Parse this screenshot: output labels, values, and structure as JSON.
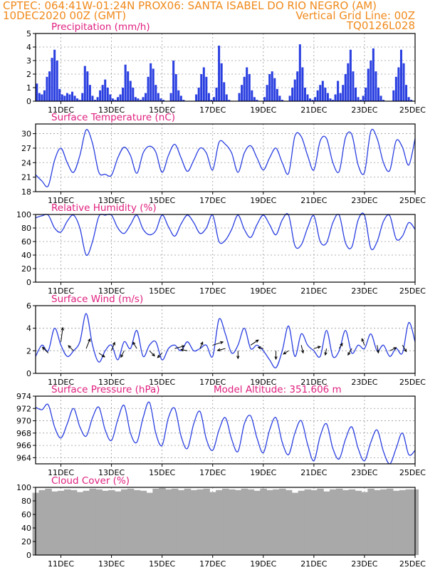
{
  "header": {
    "left_line1": "CPTEC:   064:41W-01:24N   PROX06: SANTA ISABEL DO RIO NEGRO (AM)",
    "left_line2": "10DEC2020 00Z (GMT)",
    "right_line2": "Vertical Grid Line: 00Z",
    "right_line3": "TQ0126L028"
  },
  "x_axis": {
    "start": "10DEC2020 00Z",
    "end": "25DEC2020 00Z",
    "tick_labels": [
      "11DEC",
      "13DEC",
      "15DEC",
      "17DEC",
      "19DEC",
      "21DEC",
      "23DEC",
      "25DEC"
    ],
    "tick_days": [
      1,
      3,
      5,
      7,
      9,
      11,
      13,
      15
    ]
  },
  "colors": {
    "series": "#2a3fe0",
    "cloud": "#a9a9a9",
    "title": "#e0207f",
    "header": "#f08a1c"
  },
  "chart_data": [
    {
      "type": "bar",
      "title": "Precipitation (mm/h)",
      "ylim": [
        0,
        5
      ],
      "yticks": [
        0,
        1,
        2,
        3,
        4,
        5
      ],
      "x_days": [
        0.05,
        0.15,
        0.25,
        0.35,
        0.45,
        0.55,
        0.65,
        0.75,
        0.85,
        0.95,
        1.05,
        1.15,
        1.25,
        1.35,
        1.45,
        1.55,
        1.65,
        1.75,
        1.85,
        1.95,
        2.05,
        2.15,
        2.25,
        2.35,
        2.45,
        2.55,
        2.65,
        2.75,
        2.85,
        2.95,
        3.05,
        3.15,
        3.25,
        3.35,
        3.45,
        3.55,
        3.65,
        3.75,
        3.85,
        3.95,
        4.05,
        4.15,
        4.25,
        4.35,
        4.45,
        4.55,
        4.65,
        4.75,
        4.85,
        4.95,
        5.05,
        5.15,
        5.25,
        5.35,
        5.45,
        5.55,
        5.65,
        5.75,
        5.85,
        5.95,
        6.05,
        6.15,
        6.25,
        6.35,
        6.45,
        6.55,
        6.65,
        6.75,
        6.85,
        6.95,
        7.05,
        7.15,
        7.25,
        7.35,
        7.45,
        7.55,
        7.65,
        7.75,
        7.85,
        7.95,
        8.05,
        8.15,
        8.25,
        8.35,
        8.45,
        8.55,
        8.65,
        8.75,
        8.85,
        8.95,
        9.05,
        9.15,
        9.25,
        9.35,
        9.45,
        9.55,
        9.65,
        9.75,
        9.85,
        9.95,
        10.05,
        10.15,
        10.25,
        10.35,
        10.45,
        10.55,
        10.65,
        10.75,
        10.85,
        10.95,
        11.05,
        11.15,
        11.25,
        11.35,
        11.45,
        11.55,
        11.65,
        11.75,
        11.85,
        11.95,
        12.05,
        12.15,
        12.25,
        12.35,
        12.45,
        12.55,
        12.65,
        12.75,
        12.85,
        12.95,
        13.05,
        13.15,
        13.25,
        13.35,
        13.45,
        13.55,
        13.65,
        13.75,
        13.85,
        13.95,
        14.05,
        14.15,
        14.25,
        14.35,
        14.45,
        14.55,
        14.65,
        14.75,
        14.85,
        14.95
      ],
      "values": [
        1.3,
        0.6,
        0.5,
        0.8,
        1.8,
        2.2,
        3.2,
        3.8,
        3.0,
        0.9,
        0.5,
        0.4,
        0.6,
        0.5,
        0.7,
        0.4,
        0.2,
        0.1,
        0.6,
        2.6,
        2.2,
        1.2,
        0.4,
        0.1,
        0.3,
        0.8,
        1.2,
        1.6,
        1.0,
        0.5,
        0.2,
        0.1,
        0.3,
        0.5,
        1.0,
        2.7,
        2.2,
        1.5,
        1.0,
        0.3,
        0.2,
        0.1,
        0.3,
        0.6,
        1.8,
        2.8,
        2.4,
        1.2,
        0.6,
        0.2,
        0.1,
        0.0,
        0.0,
        0.6,
        3.0,
        2.0,
        0.8,
        0.4,
        0.1,
        0.0,
        0.0,
        0.0,
        0.0,
        0.5,
        1.0,
        2.0,
        2.5,
        1.8,
        0.6,
        0.1,
        0.3,
        1.0,
        4.1,
        2.8,
        1.4,
        0.5,
        0.1,
        0.0,
        0.0,
        0.0,
        0.6,
        1.2,
        1.8,
        2.5,
        2.0,
        0.8,
        0.3,
        0.1,
        0.0,
        0.0,
        0.3,
        1.2,
        2.0,
        2.2,
        1.7,
        0.9,
        0.4,
        0.1,
        0.0,
        0.0,
        0.4,
        1.0,
        1.6,
        2.2,
        4.2,
        2.5,
        1.0,
        0.5,
        0.2,
        0.1,
        0.3,
        0.8,
        1.2,
        1.5,
        1.0,
        0.6,
        0.2,
        0.1,
        0.5,
        1.5,
        0.6,
        1.2,
        2.0,
        2.8,
        3.8,
        2.2,
        1.0,
        0.3,
        0.1,
        0.4,
        1.0,
        2.4,
        3.0,
        3.9,
        2.2,
        1.0,
        0.4,
        0.1,
        0.0,
        0.0,
        0.0,
        0.8,
        1.8,
        2.5,
        3.8,
        2.8,
        1.2,
        0.3,
        0.1,
        0.0
      ]
    },
    {
      "type": "line",
      "title": "Surface Temperature (nC)",
      "ylim": [
        18,
        32
      ],
      "yticks": [
        18,
        21,
        24,
        27,
        30
      ],
      "x_days": [
        0.0,
        0.25,
        0.5,
        0.75,
        1.0,
        1.25,
        1.5,
        1.75,
        2.0,
        2.25,
        2.5,
        2.75,
        3.0,
        3.25,
        3.5,
        3.75,
        4.0,
        4.25,
        4.5,
        4.75,
        5.0,
        5.25,
        5.5,
        5.75,
        6.0,
        6.25,
        6.5,
        6.75,
        7.0,
        7.25,
        7.5,
        7.75,
        8.0,
        8.25,
        8.5,
        8.75,
        9.0,
        9.25,
        9.5,
        9.75,
        10.0,
        10.25,
        10.5,
        10.75,
        11.0,
        11.25,
        11.5,
        11.75,
        12.0,
        12.25,
        12.5,
        12.75,
        13.0,
        13.25,
        13.5,
        13.75,
        14.0,
        14.25,
        14.5,
        14.75,
        15.0
      ],
      "values": [
        21.5,
        20.2,
        19.2,
        24.5,
        27.0,
        24.0,
        22.0,
        25.5,
        30.8,
        28.0,
        22.0,
        21.6,
        21.4,
        25.0,
        27.2,
        25.5,
        21.8,
        26.0,
        27.4,
        26.2,
        22.0,
        25.5,
        27.8,
        25.0,
        22.2,
        24.5,
        27.0,
        26.0,
        22.5,
        28.2,
        27.8,
        26.0,
        22.0,
        26.0,
        27.5,
        25.0,
        22.5,
        25.0,
        27.0,
        24.0,
        21.8,
        29.5,
        29.4,
        25.5,
        22.5,
        28.5,
        29.0,
        24.0,
        22.2,
        29.2,
        29.8,
        23.5,
        22.0,
        30.5,
        29.0,
        24.0,
        22.4,
        28.5,
        27.2,
        23.5,
        29.0
      ]
    },
    {
      "type": "line",
      "title": "Relative Humidity (%)",
      "ylim": [
        0,
        100
      ],
      "yticks": [
        0,
        20,
        40,
        60,
        80,
        100
      ],
      "x_days": [
        0.0,
        0.25,
        0.5,
        0.75,
        1.0,
        1.25,
        1.5,
        1.75,
        2.0,
        2.25,
        2.5,
        2.75,
        3.0,
        3.25,
        3.5,
        3.75,
        4.0,
        4.25,
        4.5,
        4.75,
        5.0,
        5.25,
        5.5,
        5.75,
        6.0,
        6.25,
        6.5,
        6.75,
        7.0,
        7.25,
        7.5,
        7.75,
        8.0,
        8.25,
        8.5,
        8.75,
        9.0,
        9.25,
        9.5,
        9.75,
        10.0,
        10.25,
        10.5,
        10.75,
        11.0,
        11.25,
        11.5,
        11.75,
        12.0,
        12.25,
        12.5,
        12.75,
        13.0,
        13.25,
        13.5,
        13.75,
        14.0,
        14.25,
        14.5,
        14.75,
        15.0
      ],
      "values": [
        95,
        98,
        99,
        80,
        74,
        90,
        99,
        80,
        40,
        60,
        97,
        99,
        99,
        80,
        72,
        85,
        99,
        78,
        70,
        76,
        99,
        82,
        68,
        86,
        99,
        88,
        72,
        80,
        99,
        60,
        62,
        78,
        99,
        78,
        66,
        85,
        99,
        85,
        70,
        92,
        99,
        54,
        55,
        80,
        98,
        60,
        58,
        88,
        99,
        58,
        52,
        92,
        99,
        50,
        60,
        90,
        98,
        64,
        68,
        88,
        78
      ]
    },
    {
      "type": "line",
      "title": "Surface Wind (m/s)",
      "ylim": [
        0,
        6
      ],
      "yticks": [
        0,
        2,
        4,
        6
      ],
      "x_days": [
        0.0,
        0.25,
        0.5,
        0.75,
        1.0,
        1.25,
        1.5,
        1.75,
        2.0,
        2.25,
        2.5,
        2.75,
        3.0,
        3.25,
        3.5,
        3.75,
        4.0,
        4.25,
        4.5,
        4.75,
        5.0,
        5.25,
        5.5,
        5.75,
        6.0,
        6.25,
        6.5,
        6.75,
        7.0,
        7.25,
        7.5,
        7.75,
        8.0,
        8.25,
        8.5,
        8.75,
        9.0,
        9.25,
        9.5,
        9.75,
        10.0,
        10.25,
        10.5,
        10.75,
        11.0,
        11.25,
        11.5,
        11.75,
        12.0,
        12.25,
        12.5,
        12.75,
        13.0,
        13.25,
        13.5,
        13.75,
        14.0,
        14.25,
        14.5,
        14.75,
        15.0
      ],
      "values": [
        1.5,
        2.5,
        2.0,
        4.0,
        2.5,
        1.5,
        2.0,
        2.8,
        5.3,
        2.5,
        1.0,
        2.0,
        2.5,
        1.2,
        2.8,
        2.2,
        3.8,
        1.5,
        2.5,
        2.8,
        1.2,
        2.2,
        2.5,
        2.0,
        2.8,
        2.0,
        2.2,
        2.5,
        1.5,
        4.8,
        3.5,
        1.8,
        2.5,
        4.0,
        2.2,
        2.5,
        2.0,
        1.2,
        0.5,
        2.0,
        4.2,
        1.5,
        3.5,
        2.5,
        2.0,
        1.5,
        3.8,
        1.5,
        2.0,
        3.8,
        1.8,
        2.5,
        2.2,
        3.5,
        2.0,
        2.5,
        1.5,
        2.2,
        1.8,
        4.5,
        2.8
      ],
      "arrows": [
        {
          "day": 0.5,
          "speed": 1.8,
          "u": -0.9,
          "v": 0.9
        },
        {
          "day": 1.0,
          "speed": 2.8,
          "u": 0.3,
          "v": 2.2
        },
        {
          "day": 1.5,
          "speed": 2.0,
          "u": -0.8,
          "v": 0.8
        },
        {
          "day": 2.0,
          "speed": 2.2,
          "u": 0.6,
          "v": 1.5
        },
        {
          "day": 2.5,
          "speed": 1.8,
          "u": 0.9,
          "v": -0.6
        },
        {
          "day": 3.0,
          "speed": 2.0,
          "u": 0.5,
          "v": 1.3
        },
        {
          "day": 3.5,
          "speed": 2.0,
          "u": -0.5,
          "v": -1.0
        },
        {
          "day": 4.0,
          "speed": 2.2,
          "u": -0.6,
          "v": 1.0
        },
        {
          "day": 4.5,
          "speed": 2.0,
          "u": 0.8,
          "v": -0.8
        },
        {
          "day": 5.0,
          "speed": 1.8,
          "u": -0.7,
          "v": -0.7
        },
        {
          "day": 5.5,
          "speed": 2.2,
          "u": 1.5,
          "v": 0.4
        },
        {
          "day": 6.0,
          "speed": 2.0,
          "u": -1.0,
          "v": 0.2
        },
        {
          "day": 6.5,
          "speed": 2.2,
          "u": 0.4,
          "v": 1.0
        },
        {
          "day": 7.0,
          "speed": 2.5,
          "u": 1.6,
          "v": 0.5
        },
        {
          "day": 7.5,
          "speed": 2.2,
          "u": -1.2,
          "v": -0.3
        },
        {
          "day": 8.0,
          "speed": 2.0,
          "u": 0.0,
          "v": -1.2
        },
        {
          "day": 8.5,
          "speed": 2.5,
          "u": 1.2,
          "v": 0.8
        },
        {
          "day": 9.0,
          "speed": 2.2,
          "u": -0.8,
          "v": 0.2
        },
        {
          "day": 9.5,
          "speed": 2.0,
          "u": 0.0,
          "v": -1.3
        },
        {
          "day": 10.0,
          "speed": 2.0,
          "u": -0.8,
          "v": -0.5
        },
        {
          "day": 10.5,
          "speed": 2.5,
          "u": 0.3,
          "v": -1.2
        },
        {
          "day": 11.0,
          "speed": 2.2,
          "u": 1.0,
          "v": 0.3
        },
        {
          "day": 11.5,
          "speed": 2.2,
          "u": -0.2,
          "v": -1.0
        },
        {
          "day": 12.0,
          "speed": 2.2,
          "u": 0.5,
          "v": 0.8
        },
        {
          "day": 12.5,
          "speed": 2.2,
          "u": -0.6,
          "v": -1.0
        },
        {
          "day": 13.0,
          "speed": 2.5,
          "u": -0.4,
          "v": 1.0
        },
        {
          "day": 13.5,
          "speed": 2.5,
          "u": 0.2,
          "v": -1.2
        },
        {
          "day": 14.0,
          "speed": 2.0,
          "u": 1.0,
          "v": 0.5
        },
        {
          "day": 14.5,
          "speed": 2.5,
          "u": 0.6,
          "v": -1.0
        }
      ]
    },
    {
      "type": "line",
      "title": "Surface Pressure (hPa)",
      "annotation": "Model Altitude: 351.606 m",
      "ylim": [
        963,
        974
      ],
      "yticks": [
        964,
        966,
        968,
        970,
        972,
        974
      ],
      "x_days": [
        0.0,
        0.25,
        0.5,
        0.75,
        1.0,
        1.25,
        1.5,
        1.75,
        2.0,
        2.25,
        2.5,
        2.75,
        3.0,
        3.25,
        3.5,
        3.75,
        4.0,
        4.25,
        4.5,
        4.75,
        5.0,
        5.25,
        5.5,
        5.75,
        6.0,
        6.25,
        6.5,
        6.75,
        7.0,
        7.25,
        7.5,
        7.75,
        8.0,
        8.25,
        8.5,
        8.75,
        9.0,
        9.25,
        9.5,
        9.75,
        10.0,
        10.25,
        10.5,
        10.75,
        11.0,
        11.25,
        11.5,
        11.75,
        12.0,
        12.25,
        12.5,
        12.75,
        13.0,
        13.25,
        13.5,
        13.75,
        14.0,
        14.25,
        14.5,
        14.75,
        15.0
      ],
      "values": [
        972.2,
        971.8,
        972.6,
        969.0,
        967.2,
        969.5,
        972.0,
        969.0,
        967.5,
        970.5,
        972.2,
        968.5,
        966.8,
        970.2,
        972.5,
        968.0,
        966.5,
        970.5,
        973.0,
        968.0,
        966.0,
        970.5,
        972.0,
        967.5,
        965.5,
        969.5,
        971.5,
        967.0,
        965.2,
        968.5,
        970.5,
        967.0,
        965.0,
        969.5,
        970.8,
        967.2,
        964.8,
        968.5,
        970.5,
        966.5,
        964.5,
        968.0,
        970.0,
        966.2,
        963.5,
        967.5,
        969.5,
        965.5,
        963.8,
        967.0,
        969.0,
        965.5,
        963.5,
        966.5,
        968.5,
        965.0,
        963.0,
        965.5,
        968.0,
        964.5,
        965.2
      ]
    },
    {
      "type": "area",
      "title": "Cloud Cover (%)",
      "ylim": [
        0,
        100
      ],
      "yticks": [
        0,
        20,
        40,
        60,
        80,
        100
      ],
      "x_days": [
        0.0,
        0.25,
        0.5,
        0.75,
        1.0,
        1.25,
        1.5,
        1.75,
        2.0,
        2.25,
        2.5,
        2.75,
        3.0,
        3.25,
        3.5,
        3.75,
        4.0,
        4.25,
        4.5,
        4.75,
        5.0,
        5.25,
        5.5,
        5.75,
        6.0,
        6.25,
        6.5,
        6.75,
        7.0,
        7.25,
        7.5,
        7.75,
        8.0,
        8.25,
        8.5,
        8.75,
        9.0,
        9.25,
        9.5,
        9.75,
        10.0,
        10.25,
        10.5,
        10.75,
        11.0,
        11.25,
        11.5,
        11.75,
        12.0,
        12.25,
        12.5,
        12.75,
        13.0,
        13.25,
        13.5,
        13.75,
        14.0,
        14.25,
        14.5,
        14.75,
        15.0
      ],
      "values": [
        92,
        96,
        98,
        94,
        95,
        97,
        96,
        93,
        95,
        98,
        97,
        95,
        96,
        94,
        97,
        98,
        96,
        95,
        92,
        98,
        99,
        97,
        98,
        96,
        98,
        96,
        97,
        98,
        93,
        96,
        98,
        97,
        96,
        98,
        97,
        95,
        98,
        96,
        97,
        98,
        96,
        92,
        95,
        97,
        96,
        98,
        94,
        97,
        98,
        96,
        97,
        95,
        93,
        98,
        96,
        97,
        98,
        95,
        96,
        97,
        97
      ]
    }
  ]
}
